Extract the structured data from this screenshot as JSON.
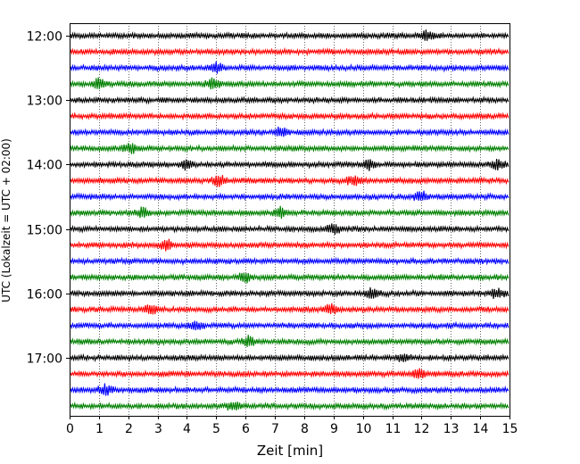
{
  "chart_data": {
    "type": "line",
    "title": "",
    "xlabel": "Zeit  [min]",
    "ylabel": "UTC (Lokalzeit = UTC + 02:00)",
    "xlim": [
      0,
      15
    ],
    "x_ticks": [
      0,
      1,
      2,
      3,
      4,
      5,
      6,
      7,
      8,
      9,
      10,
      11,
      12,
      13,
      14,
      15
    ],
    "x_tick_labels": [
      "0",
      "1",
      "2",
      "3",
      "4",
      "5",
      "6",
      "7",
      "8",
      "9",
      "10",
      "11",
      "12",
      "13",
      "14",
      "15"
    ],
    "y_tick_labels": [
      "12:00",
      "13:00",
      "14:00",
      "15:00",
      "16:00",
      "17:00"
    ],
    "y_ticks_row_index": [
      0,
      4,
      8,
      12,
      16,
      20
    ],
    "grid": "vertical dotted at each minute",
    "row_interval_minutes": 15,
    "color_cycle": [
      "#000000",
      "#ff0000",
      "#0000ff",
      "#008000"
    ],
    "rows": [
      {
        "start": "12:00",
        "color": "#000000",
        "events_min": [
          12.2
        ]
      },
      {
        "start": "12:15",
        "color": "#ff0000",
        "events_min": []
      },
      {
        "start": "12:30",
        "color": "#0000ff",
        "events_min": [
          5.0
        ]
      },
      {
        "start": "12:45",
        "color": "#008000",
        "events_min": [
          1.0,
          4.9
        ]
      },
      {
        "start": "13:00",
        "color": "#000000",
        "events_min": []
      },
      {
        "start": "13:15",
        "color": "#ff0000",
        "events_min": []
      },
      {
        "start": "13:30",
        "color": "#0000ff",
        "events_min": [
          7.2
        ]
      },
      {
        "start": "13:45",
        "color": "#008000",
        "events_min": [
          2.1
        ]
      },
      {
        "start": "14:00",
        "color": "#000000",
        "events_min": [
          4.0,
          10.2,
          14.6
        ]
      },
      {
        "start": "14:15",
        "color": "#ff0000",
        "events_min": [
          5.1,
          9.7
        ]
      },
      {
        "start": "14:30",
        "color": "#0000ff",
        "events_min": [
          12.0
        ]
      },
      {
        "start": "14:45",
        "color": "#008000",
        "events_min": [
          2.5,
          7.2
        ]
      },
      {
        "start": "15:00",
        "color": "#000000",
        "events_min": [
          9.0
        ]
      },
      {
        "start": "15:15",
        "color": "#ff0000",
        "events_min": [
          3.3
        ]
      },
      {
        "start": "15:30",
        "color": "#0000ff",
        "events_min": []
      },
      {
        "start": "15:45",
        "color": "#008000",
        "events_min": [
          6.0
        ]
      },
      {
        "start": "16:00",
        "color": "#000000",
        "events_min": [
          10.3,
          14.6
        ]
      },
      {
        "start": "16:15",
        "color": "#ff0000",
        "events_min": [
          2.8,
          8.9
        ]
      },
      {
        "start": "16:30",
        "color": "#0000ff",
        "events_min": [
          4.3
        ]
      },
      {
        "start": "16:45",
        "color": "#008000",
        "events_min": [
          6.1
        ]
      },
      {
        "start": "17:00",
        "color": "#000000",
        "events_min": [
          11.4
        ]
      },
      {
        "start": "17:15",
        "color": "#ff0000",
        "events_min": [
          11.9
        ]
      },
      {
        "start": "17:30",
        "color": "#0000ff",
        "events_min": [
          1.2
        ]
      },
      {
        "start": "17:45",
        "color": "#008000",
        "events_min": [
          5.6
        ]
      }
    ]
  }
}
